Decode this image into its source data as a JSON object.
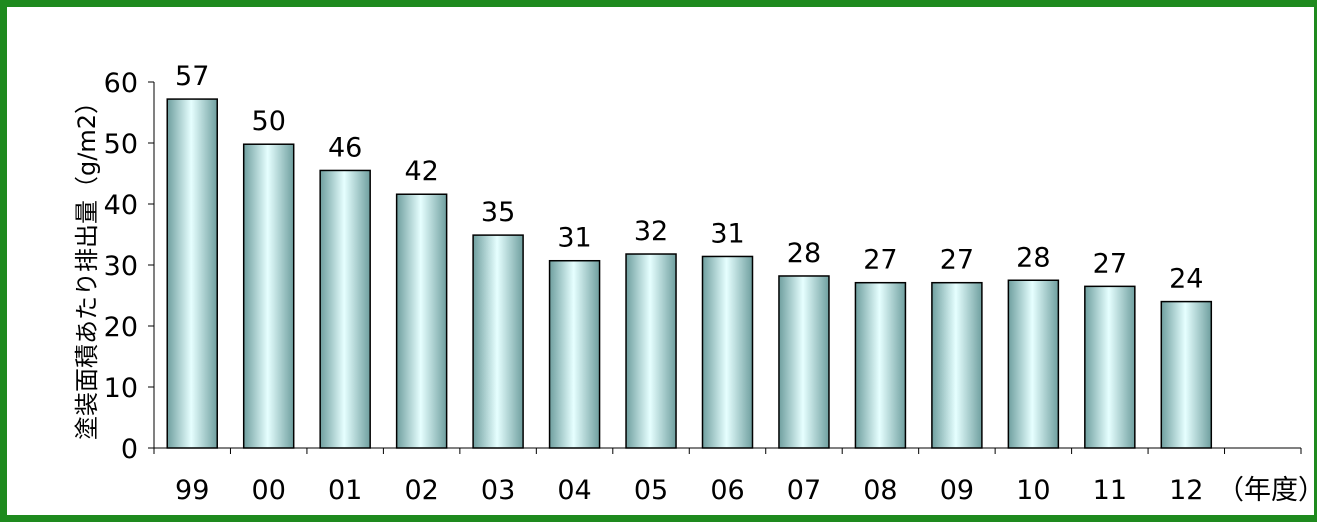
{
  "chart_data": {
    "type": "bar",
    "title": "",
    "ylabel": "塗装面積あたり排出量（g/m2）",
    "xlabel": "（年度）",
    "categories": [
      "99",
      "00",
      "01",
      "02",
      "03",
      "04",
      "05",
      "06",
      "07",
      "08",
      "09",
      "10",
      "11",
      "12"
    ],
    "values": [
      57,
      50,
      46,
      42,
      35,
      31,
      32,
      31,
      28,
      27,
      27,
      28,
      27,
      24
    ],
    "plotted_values": [
      57.2,
      49.8,
      45.5,
      41.6,
      34.9,
      30.7,
      31.8,
      31.4,
      28.2,
      27.1,
      27.1,
      27.5,
      26.5,
      24.0
    ],
    "ylim": [
      0,
      60
    ],
    "yticks": [
      "0",
      "10",
      "20",
      "30",
      "40",
      "50",
      "60"
    ],
    "grid": false,
    "legend": "none",
    "colors": {
      "frame": "#1e8a1e",
      "bar_edge": "#6f9f9f",
      "bar_center": "#e6ffff",
      "bar_outline": "#000000"
    }
  }
}
